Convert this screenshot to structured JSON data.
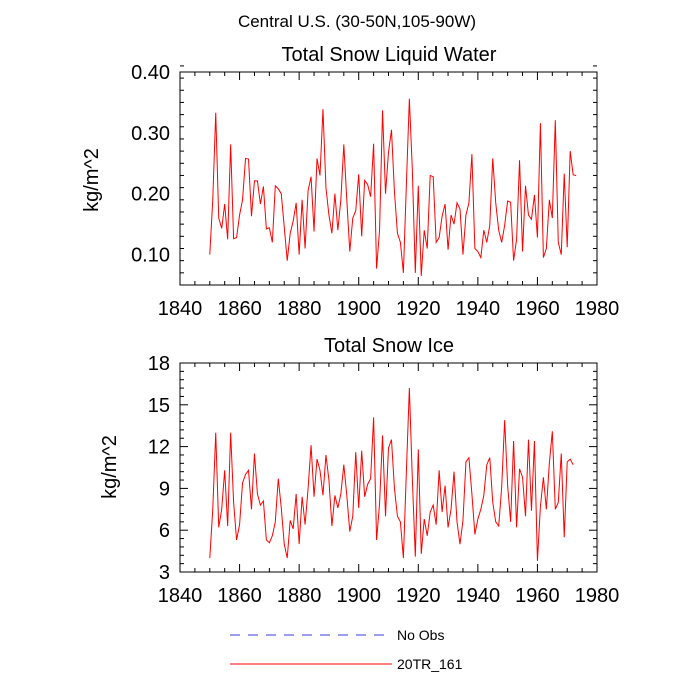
{
  "figure_title": "Central U.S. (30-50N,105-90W)",
  "legend": {
    "entries": [
      {
        "label": "No Obs",
        "color": "#3b3bdc",
        "style": "dashed"
      },
      {
        "label": "20TR_161",
        "color": "#ff0000",
        "style": "solid"
      }
    ]
  },
  "chart_data": [
    {
      "type": "line",
      "title": "Total Snow Liquid Water",
      "xlabel": "",
      "ylabel": "kg/m^2",
      "xlim": [
        1840,
        1980
      ],
      "ylim": [
        0.05,
        0.4
      ],
      "x_ticks": [
        1840,
        1860,
        1880,
        1900,
        1920,
        1940,
        1960,
        1980
      ],
      "y_ticks": [
        0.1,
        0.2,
        0.3,
        0.4
      ],
      "y_tick_labels": [
        "0.10",
        "0.20",
        "0.30",
        "0.40"
      ],
      "x_tick_labels": [
        "1840",
        "1860",
        "1880",
        "1900",
        "1920",
        "1940",
        "1960",
        "1980"
      ],
      "series": [
        {
          "name": "20TR_161",
          "color": "#ff0000",
          "x_start": 1850,
          "x_step": 1,
          "values": [
            0.1,
            0.19,
            0.333,
            0.16,
            0.143,
            0.183,
            0.125,
            0.281,
            0.126,
            0.128,
            0.165,
            0.19,
            0.258,
            0.257,
            0.163,
            0.221,
            0.221,
            0.183,
            0.212,
            0.142,
            0.144,
            0.12,
            0.213,
            0.208,
            0.2,
            0.145,
            0.09,
            0.135,
            0.155,
            0.185,
            0.1,
            0.19,
            0.11,
            0.205,
            0.228,
            0.138,
            0.258,
            0.23,
            0.339,
            0.21,
            0.165,
            0.135,
            0.2,
            0.14,
            0.19,
            0.281,
            0.19,
            0.105,
            0.16,
            0.172,
            0.232,
            0.13,
            0.222,
            0.215,
            0.195,
            0.282,
            0.077,
            0.14,
            0.337,
            0.2,
            0.268,
            0.305,
            0.203,
            0.135,
            0.12,
            0.07,
            0.215,
            0.356,
            0.24,
            0.07,
            0.213,
            0.065,
            0.14,
            0.11,
            0.23,
            0.228,
            0.12,
            0.128,
            0.163,
            0.183,
            0.108,
            0.165,
            0.15,
            0.185,
            0.175,
            0.1,
            0.165,
            0.185,
            0.265,
            0.11,
            0.105,
            0.095,
            0.14,
            0.12,
            0.148,
            0.258,
            0.185,
            0.14,
            0.12,
            0.148,
            0.188,
            0.186,
            0.09,
            0.125,
            0.255,
            0.105,
            0.213,
            0.165,
            0.158,
            0.198,
            0.128,
            0.316,
            0.095,
            0.11,
            0.19,
            0.16,
            0.321,
            0.12,
            0.1,
            0.233,
            0.112,
            0.27,
            0.231,
            0.23
          ]
        },
        {
          "name": "No Obs",
          "color": "#3b3bdc",
          "values": []
        }
      ]
    },
    {
      "type": "line",
      "title": "Total Snow Ice",
      "xlabel": "",
      "ylabel": "kg/m^2",
      "xlim": [
        1840,
        1980
      ],
      "ylim": [
        3,
        18
      ],
      "x_ticks": [
        1840,
        1860,
        1880,
        1900,
        1920,
        1940,
        1960,
        1980
      ],
      "y_ticks": [
        3,
        6,
        9,
        12,
        15,
        18
      ],
      "y_tick_labels": [
        "3",
        "6",
        "9",
        "12",
        "15",
        "18"
      ],
      "x_tick_labels": [
        "1840",
        "1860",
        "1880",
        "1900",
        "1920",
        "1940",
        "1960",
        "1980"
      ],
      "series": [
        {
          "name": "20TR_161",
          "color": "#ff0000",
          "x_start": 1850,
          "x_step": 1,
          "values": [
            4.0,
            7.5,
            13.0,
            6.2,
            7.5,
            10.3,
            6.3,
            13.0,
            8.0,
            5.3,
            6.4,
            9.4,
            10.0,
            10.3,
            7.5,
            11.5,
            8.6,
            7.8,
            8.1,
            5.3,
            5.1,
            5.6,
            6.6,
            9.7,
            7.6,
            5.0,
            4.0,
            6.7,
            6.1,
            8.6,
            5.0,
            8.4,
            6.4,
            9.0,
            12.1,
            8.4,
            11.1,
            10.3,
            8.5,
            11.4,
            9.6,
            6.3,
            8.5,
            7.6,
            8.6,
            10.7,
            8.5,
            5.9,
            7.0,
            11.6,
            7.6,
            11.7,
            8.4,
            9.3,
            9.7,
            14.1,
            5.3,
            7.9,
            12.8,
            7.0,
            11.9,
            12.5,
            9.0,
            7.0,
            6.6,
            4.0,
            10.2,
            16.2,
            9.7,
            4.1,
            11.8,
            4.3,
            6.8,
            5.6,
            7.3,
            7.8,
            6.4,
            10.3,
            7.3,
            9.2,
            6.2,
            7.5,
            10.2,
            6.6,
            5.0,
            6.7,
            10.9,
            11.2,
            8.6,
            5.7,
            6.8,
            7.5,
            8.5,
            10.7,
            11.2,
            8.0,
            6.6,
            6.3,
            9.1,
            13.9,
            9.2,
            6.6,
            12.4,
            6.2,
            10.4,
            9.8,
            7.0,
            12.5,
            7.4,
            12.4,
            3.8,
            7.7,
            9.8,
            7.5,
            10.8,
            13.1,
            7.5,
            8.0,
            11.5,
            5.5,
            10.9,
            11.1,
            10.7
          ]
        },
        {
          "name": "No Obs",
          "color": "#3b3bdc",
          "values": []
        }
      ]
    }
  ]
}
